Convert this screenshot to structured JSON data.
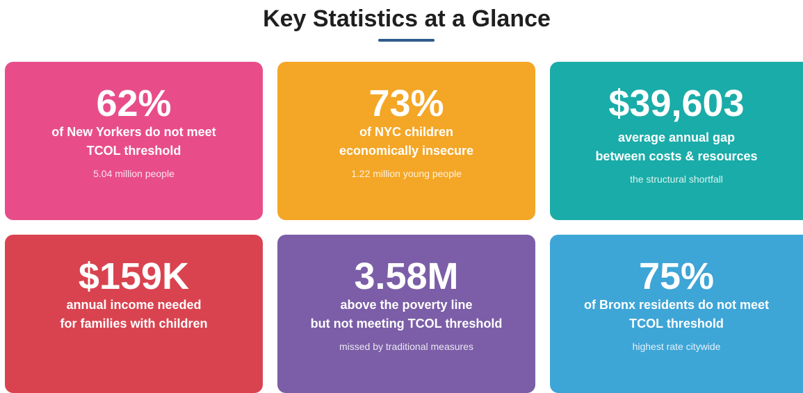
{
  "header": {
    "title": "Key Statistics at a Glance"
  },
  "cards": [
    {
      "value": "62%",
      "label": [
        "of New Yorkers do not meet",
        "TCOL threshold"
      ],
      "note": "5.04 million people"
    },
    {
      "value": "73%",
      "label": [
        "of NYC children",
        "economically insecure"
      ],
      "note": "1.22 million young people"
    },
    {
      "value": "$39,603",
      "label": [
        "average annual gap",
        "between costs & resources"
      ],
      "note": "the structural shortfall"
    },
    {
      "value": "$159K",
      "label": [
        "annual income needed",
        "for families with children"
      ]
    },
    {
      "value": "3.58M",
      "label": [
        "above the poverty line",
        "but not meeting TCOL threshold"
      ],
      "note": "missed by traditional measures"
    },
    {
      "value": "75%",
      "label": [
        "of Bronx residents do not meet",
        "TCOL threshold"
      ],
      "note": "highest rate citywide"
    }
  ]
}
